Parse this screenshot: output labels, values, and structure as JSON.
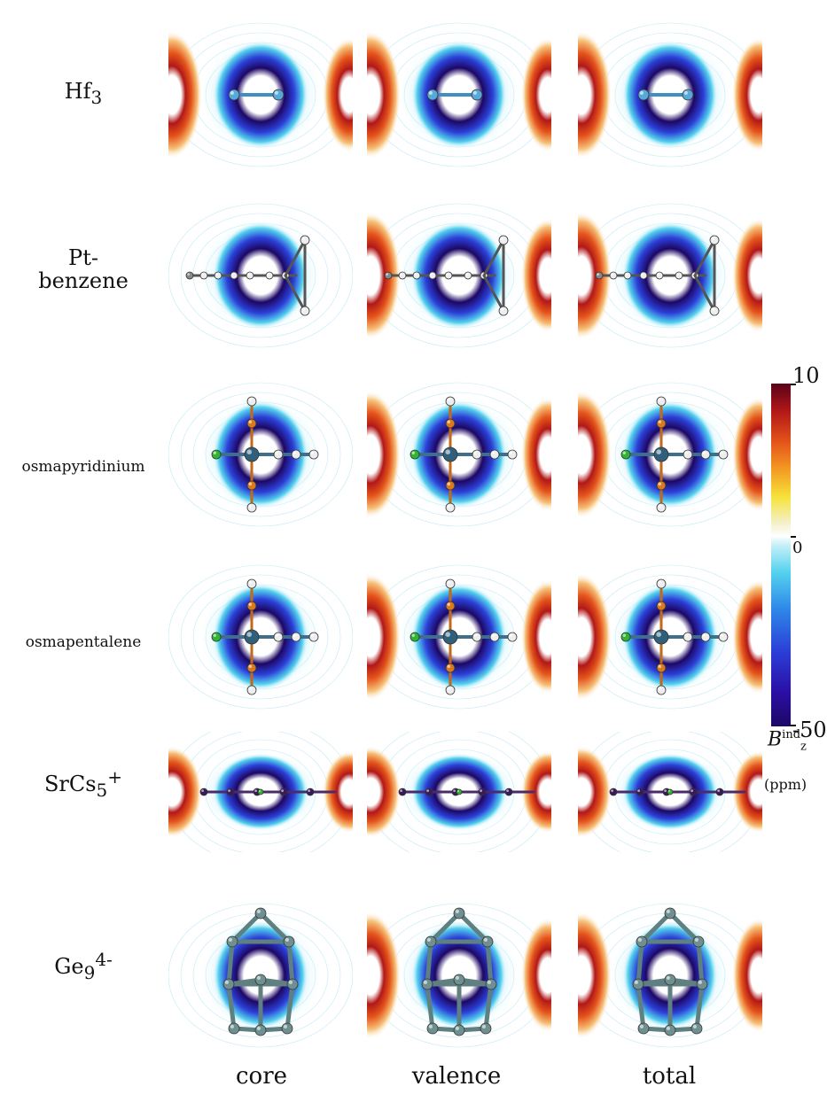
{
  "rows": [
    {
      "name": "Hf",
      "sub": "3",
      "sup": ""
    },
    {
      "name": "Pt-",
      "line2": "benzene"
    },
    {
      "name": "osmapyridinium"
    },
    {
      "name": "osmapentalene"
    },
    {
      "name": "SrCs",
      "sub": "5",
      "sup": "+"
    },
    {
      "name": "Ge",
      "sub": "9",
      "sup": "4-"
    }
  ],
  "columns": [
    "core",
    "valence",
    "total"
  ],
  "colorbar": {
    "max_label": "10",
    "zero_label": "0",
    "min_label": "-50",
    "quantity_symbol": "B",
    "quantity_sup": "ind",
    "quantity_sub": "z",
    "unit": "(ppm)",
    "colors": {
      "positive": "#b11818",
      "neutral": "#ffffff",
      "negative": "#1d0764"
    }
  }
}
